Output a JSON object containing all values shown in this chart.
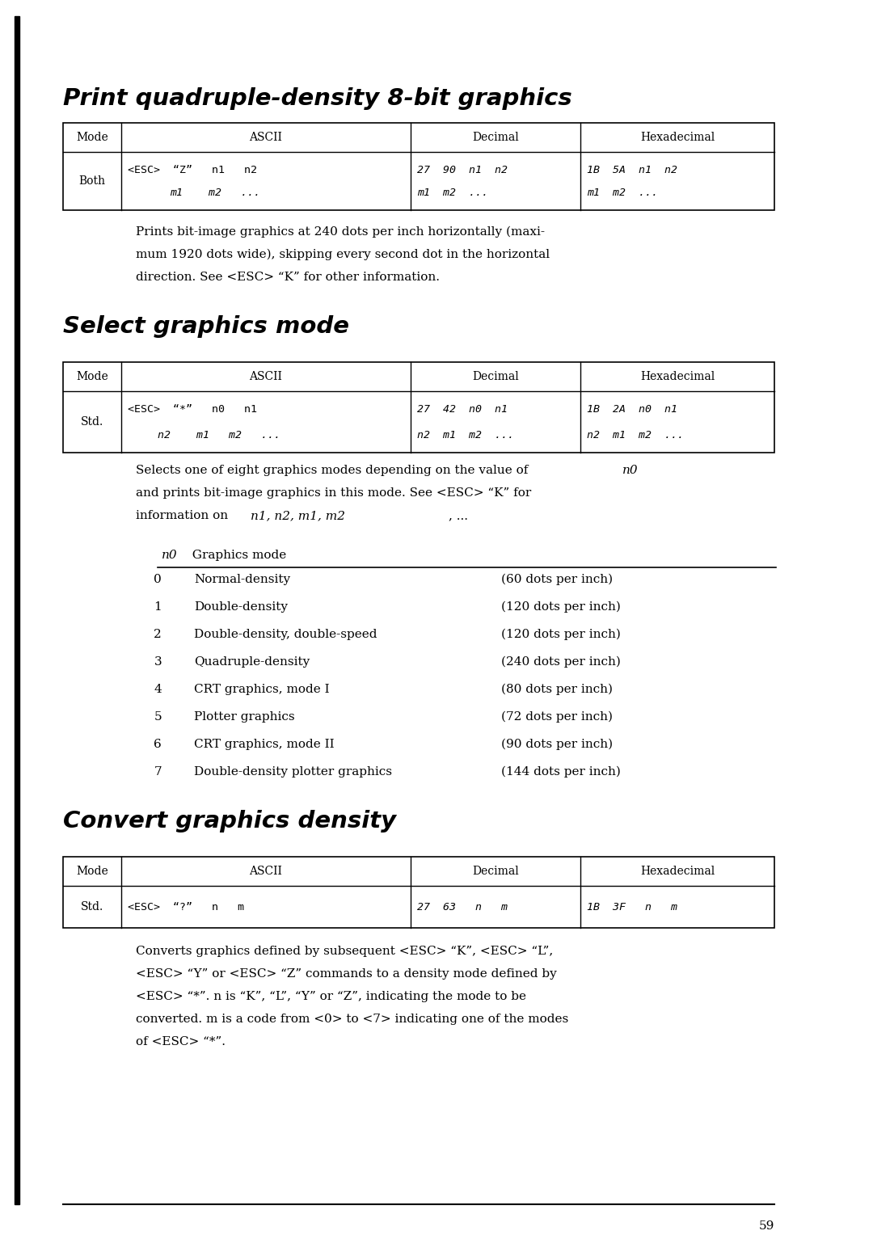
{
  "bg_color": "#ffffff",
  "page_number": "59",
  "section1_title": "Print quadruple-density 8-bit graphics",
  "section2_title": "Select graphics mode",
  "section3_title": "Convert graphics density",
  "table1_ascii_line1": "<ESC>  “Z”   n1   n2",
  "table1_ascii_line2": "m1    m2   ...",
  "table1_dec_line1": "27  90  n1  n2",
  "table1_dec_line2": "m1  m2  ...",
  "table1_hex_line1": "1B  5A  n1  n2",
  "table1_hex_line2": "m1  m2  ...",
  "table1_mode": "Both",
  "table2_ascii_line1": "<ESC>  “*”   n0   n1",
  "table2_ascii_line2": "n2    m1   m2   ...",
  "table2_dec_line1": "27  42  n0  n1",
  "table2_dec_line2": "n2  m1  m2  ...",
  "table2_hex_line1": "1B  2A  n0  n1",
  "table2_hex_line2": "n2  m1  m2  ...",
  "table2_mode": "Std.",
  "table3_ascii": "<ESC>  “?”   n   m",
  "table3_dec": "27  63   n   m",
  "table3_hex": "1B  3F   n   m",
  "table3_mode": "Std.",
  "sec1_body": [
    "Prints bit-image graphics at 240 dots per inch horizontally (maxi-",
    "mum 1920 dots wide), skipping every second dot in the horizontal",
    "direction. See <ESC> “K” for other information."
  ],
  "sec2_body_pre": "Selects one of eight graphics modes depending on the value of ",
  "sec2_body_n0": "n0",
  "sec2_body2": "and prints bit-image graphics in this mode. See <ESC> “K” for",
  "sec2_body3_pre": "information on ",
  "sec2_body3_vars": "n1, n2, m1, m2",
  "sec2_body3_post": ", ...",
  "graphics_modes": [
    [
      "0",
      "Normal-density",
      "(60 dots per inch)"
    ],
    [
      "1",
      "Double-density",
      "(120 dots per inch)"
    ],
    [
      "2",
      "Double-density, double-speed",
      "(120 dots per inch)"
    ],
    [
      "3",
      "Quadruple-density",
      "(240 dots per inch)"
    ],
    [
      "4",
      "CRT graphics, mode I",
      "(80 dots per inch)"
    ],
    [
      "5",
      "Plotter graphics",
      "(72 dots per inch)"
    ],
    [
      "6",
      "CRT graphics, mode II",
      "(90 dots per inch)"
    ],
    [
      "7",
      "Double-density plotter graphics",
      "(144 dots per inch)"
    ]
  ],
  "sec3_body": [
    "Converts graphics defined by subsequent <ESC> “K”, <ESC> “L”,",
    "<ESC> “Y” or <ESC> “Z” commands to a density mode defined by",
    "<ESC> “*”. n is “K”, “L”, “Y” or “Z”, indicating the mode to be",
    "converted. m is a code from <0> to <7> indicating one of the modes",
    "of <ESC> “*”."
  ]
}
